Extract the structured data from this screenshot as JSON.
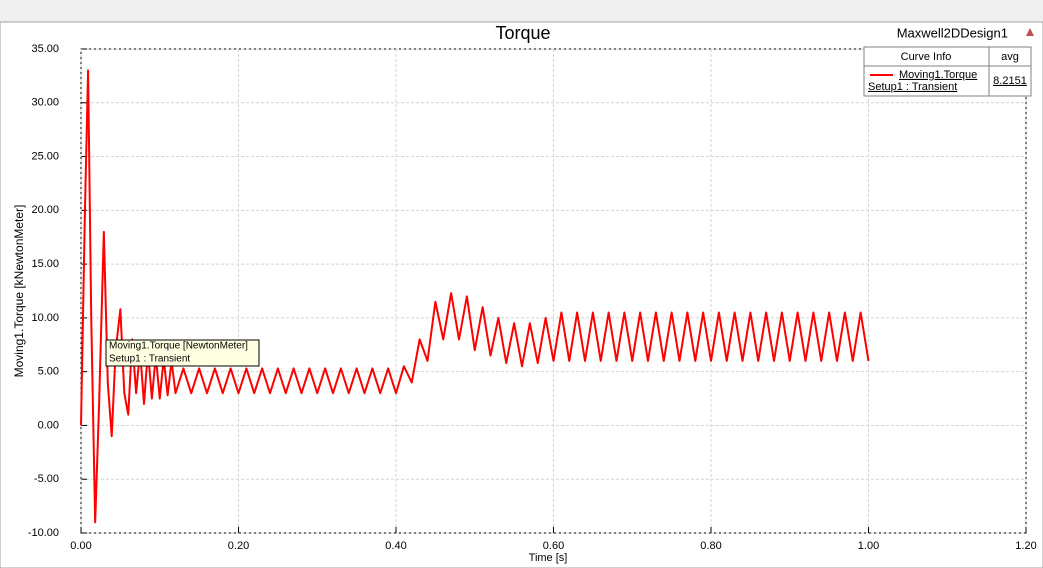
{
  "chart_data": {
    "type": "line",
    "title": "Torque",
    "design": "Maxwell2DDesign1",
    "xlabel": "Time [s]",
    "ylabel": "Moving1.Torque [kNewtonMeter]",
    "xlim": [
      0,
      1.2
    ],
    "xticks": [
      {
        "value": 0,
        "label": "0.00"
      },
      {
        "value": 0.2,
        "label": "0.20"
      },
      {
        "value": 0.4,
        "label": "0.40"
      },
      {
        "value": 0.6,
        "label": "0.60"
      },
      {
        "value": 0.8,
        "label": "0.80"
      },
      {
        "value": 1,
        "label": "1.00"
      },
      {
        "value": 1.2,
        "label": "1.20"
      }
    ],
    "ylim": [
      -10,
      35
    ],
    "yticks": [
      {
        "value": -10,
        "label": "-10.00"
      },
      {
        "value": -5,
        "label": "-5.00"
      },
      {
        "value": 0,
        "label": "0.00"
      },
      {
        "value": 5,
        "label": "5.00"
      },
      {
        "value": 10,
        "label": "10.00"
      },
      {
        "value": 15,
        "label": "15.00"
      },
      {
        "value": 20,
        "label": "20.00"
      },
      {
        "value": 25,
        "label": "25.00"
      },
      {
        "value": 30,
        "label": "30.00"
      },
      {
        "value": 35,
        "label": "35.00"
      }
    ],
    "grid": true,
    "x": [
      0,
      0.005,
      0.009,
      0.013,
      0.018,
      0.023,
      0.029,
      0.034,
      0.039,
      0.044,
      0.05,
      0.055,
      0.06,
      0.065,
      0.07,
      0.075,
      0.08,
      0.085,
      0.09,
      0.095,
      0.1,
      0.105,
      0.11,
      0.115,
      0.12,
      0.13,
      0.14,
      0.15,
      0.16,
      0.17,
      0.18,
      0.19,
      0.2,
      0.21,
      0.22,
      0.23,
      0.24,
      0.25,
      0.26,
      0.27,
      0.28,
      0.29,
      0.3,
      0.31,
      0.32,
      0.33,
      0.34,
      0.35,
      0.36,
      0.37,
      0.38,
      0.39,
      0.4,
      0.41,
      0.42,
      0.43,
      0.44,
      0.45,
      0.46,
      0.47,
      0.48,
      0.49,
      0.5,
      0.51,
      0.52,
      0.53,
      0.54,
      0.55,
      0.56,
      0.57,
      0.58,
      0.59,
      0.6,
      0.61,
      0.62,
      0.63,
      0.64,
      0.65,
      0.66,
      0.67,
      0.68,
      0.69,
      0.7,
      0.71,
      0.72,
      0.73,
      0.74,
      0.75,
      0.76,
      0.77,
      0.78,
      0.79,
      0.8,
      0.81,
      0.82,
      0.83,
      0.84,
      0.85,
      0.86,
      0.87,
      0.88,
      0.89,
      0.9,
      0.91,
      0.92,
      0.93,
      0.94,
      0.95,
      0.96,
      0.97,
      0.98,
      0.99,
      1
    ],
    "series": [
      {
        "name": "Moving1.Torque",
        "color": "#ff0000",
        "values": [
          0,
          20,
          33,
          10,
          -9,
          2,
          18,
          4,
          -1,
          7,
          10.8,
          3,
          1,
          8,
          3,
          7,
          2,
          7,
          2.5,
          6.5,
          2.5,
          6.2,
          2.8,
          6,
          3,
          5.3,
          3,
          5.3,
          3,
          5.3,
          3,
          5.3,
          3,
          5.3,
          3,
          5.3,
          3,
          5.3,
          3,
          5.3,
          3,
          5.3,
          3,
          5.3,
          3,
          5.3,
          3,
          5.3,
          3,
          5.3,
          3,
          5.3,
          3,
          5.5,
          4,
          8,
          6,
          11.5,
          8,
          12.3,
          8,
          12,
          7,
          11,
          6.5,
          10,
          5.8,
          9.5,
          5.5,
          9.5,
          5.8,
          10,
          6,
          10.5,
          6,
          10.5,
          6,
          10.5,
          6,
          10.5,
          6,
          10.5,
          6,
          10.5,
          6,
          10.5,
          6,
          10.5,
          6,
          10.5,
          6,
          10.5,
          6,
          10.5,
          6,
          10.5,
          6,
          10.5,
          6,
          10.5,
          6,
          10.5,
          6,
          10.5,
          6,
          10.5,
          6,
          10.5,
          6,
          10.5,
          6,
          10.5,
          6
        ]
      }
    ],
    "legend": {
      "header": [
        "Curve Info",
        "avg"
      ],
      "setup": "Setup1 : Transient",
      "avg": 8.2151
    },
    "tooltip": [
      "Moving1.Torque [NewtonMeter]",
      "Setup1 : Transient"
    ]
  }
}
